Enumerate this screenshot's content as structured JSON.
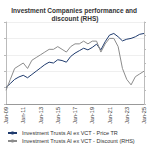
{
  "chart_data": {
    "type": "line",
    "title": "Investment Companies performance and discount (RHS)",
    "categories": [
      "Jan-09",
      null,
      null,
      null,
      "Jan-11",
      null,
      null,
      null,
      "Jan-13",
      null,
      null,
      null,
      "Jan-15",
      null,
      null,
      null,
      "Jan-17",
      null,
      null,
      null,
      "Jan-19",
      null,
      null,
      null,
      "Jan-21",
      null,
      null,
      null,
      "Jan-23",
      null,
      null,
      null,
      "Jan-25"
    ],
    "series": [
      {
        "name": "Investment Trusts AI ex VCT - Price TR",
        "color": "#1f3b6e",
        "axis": "y",
        "values": [
          100,
          125,
          150,
          165,
          175,
          160,
          180,
          200,
          220,
          240,
          255,
          250,
          270,
          265,
          255,
          290,
          310,
          325,
          340,
          330,
          345,
          365,
          330,
          380,
          420,
          430,
          410,
          385,
          395,
          400,
          410,
          425,
          430
        ]
      },
      {
        "name": "Investment Trusts AI ex VCT - Discount (RHS)",
        "color": "#8c8c8c",
        "axis": "y2",
        "values": [
          -20,
          -16,
          -12,
          -11,
          -10,
          -12,
          -9,
          -8,
          -7,
          -6,
          -5,
          -5,
          -4,
          -5,
          -6,
          -4,
          -3,
          -3,
          -2,
          -3,
          -2,
          -2,
          -6,
          -3,
          -1,
          -1,
          -4,
          -12,
          -16,
          -18,
          -15,
          -14,
          -13
        ]
      }
    ],
    "ylim": [
      0,
      500
    ],
    "yticks": [
      0,
      100,
      200,
      300,
      400,
      500
    ],
    "y2lim": [
      -25,
      5
    ],
    "y2ticks": [
      -25,
      -20,
      -15,
      -10,
      -5,
      0,
      5
    ],
    "grid": true,
    "legend": "bottom",
    "tick_labels": "x"
  }
}
